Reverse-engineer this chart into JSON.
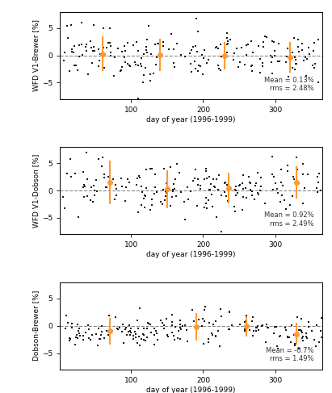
{
  "panels": [
    {
      "ylabel": "WFD V1-Brewer [%]",
      "xlabel": "day of year (1996-1999)",
      "mean_text": "Mean = 0.13%",
      "rms_text": "rms = 2.48%",
      "ylim": [
        -8,
        8
      ],
      "dashed_y": 0,
      "orange_x": [
        60,
        140,
        230,
        320
      ],
      "orange_y": [
        0.3,
        0.1,
        0.0,
        -0.3
      ],
      "orange_err": [
        3.2,
        3.0,
        2.5,
        2.8
      ],
      "seed": 42
    },
    {
      "ylabel": "WFD V1-Dobson [%]",
      "xlabel": "day of year (1996-1999)",
      "mean_text": "Mean = 0.92%",
      "rms_text": "rms = 2.49%",
      "ylim": [
        -8,
        8
      ],
      "dashed_y": 0,
      "orange_x": [
        70,
        150,
        235,
        330
      ],
      "orange_y": [
        1.5,
        0.3,
        0.5,
        1.5
      ],
      "orange_err": [
        4.0,
        3.5,
        2.8,
        3.0
      ],
      "seed": 123
    },
    {
      "ylabel": "Dobson-Brewer [%]",
      "xlabel": "day of year (1996-1999)",
      "mean_text": "Mean = -0.7%",
      "rms_text": "rms = 1.49%",
      "ylim": [
        -8,
        8
      ],
      "dashed_y": 0,
      "orange_x": [
        70,
        190,
        260,
        330
      ],
      "orange_y": [
        -1.0,
        -0.2,
        -0.1,
        -1.5
      ],
      "orange_err": [
        2.5,
        2.5,
        1.8,
        2.0
      ],
      "seed": 77
    }
  ],
  "scatter_color": "#1a1a1a",
  "orange_color": "#ff9933",
  "scatter_marker": "s",
  "scatter_size": 4,
  "dashed_color": "#888888",
  "background_color": "#ffffff",
  "xticks": [
    100,
    200,
    300
  ],
  "xlim": [
    1,
    365
  ]
}
